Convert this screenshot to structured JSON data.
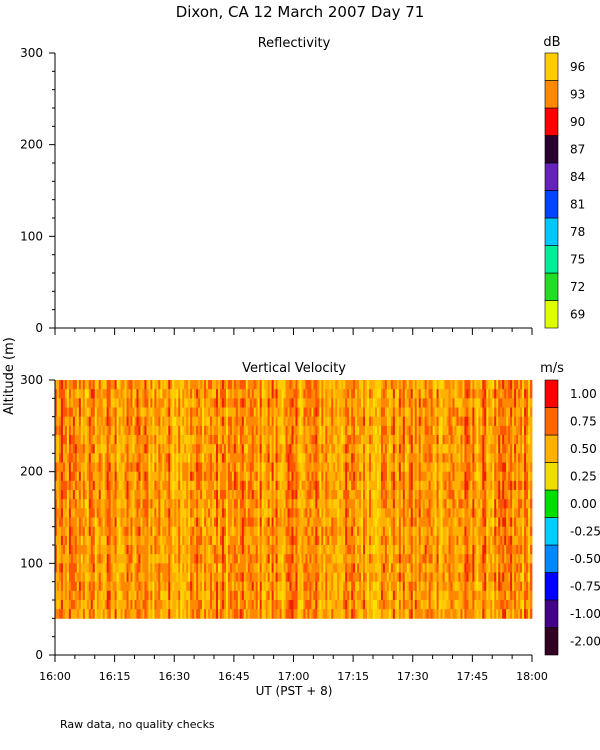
{
  "figure": {
    "title": "Dixon, CA 12 March 2007  Day  71",
    "shared_ylabel": "Altitude (m)",
    "xlabel": "UT  (PST + 8)",
    "footnote": "Raw data, no quality checks"
  },
  "colors": {
    "reflectivity_scale": [
      "#dfff00",
      "#22dd22",
      "#00ee99",
      "#00c8ff",
      "#0044ff",
      "#6622bb",
      "#2a0033",
      "#ff0000",
      "#ff8800",
      "#ffcc00"
    ],
    "velocity_scale": [
      "#330022",
      "#440088",
      "#0000ff",
      "#0088ff",
      "#00ccff",
      "#00dd00",
      "#eedd00",
      "#ffb000",
      "#ff6600",
      "#ff0000"
    ]
  },
  "chart_data": [
    {
      "type": "heatmap",
      "title": "Reflectivity",
      "ylabel": "Altitude (m)",
      "xlabel": "",
      "x_tick_labels": [
        "16:00",
        "16:15",
        "16:30",
        "16:45",
        "17:00",
        "17:15",
        "17:30",
        "17:45",
        "18:00"
      ],
      "xlim": [
        "16:00",
        "18:00"
      ],
      "ylim": [
        0,
        300
      ],
      "y_ticks": [
        0,
        100,
        200,
        300
      ],
      "colorbar": {
        "unit": "dB",
        "ticks": [
          "69",
          "72",
          "75",
          "78",
          "81",
          "84",
          "87",
          "90",
          "93",
          "96"
        ]
      },
      "data": "no returns plotted (empty panel)"
    },
    {
      "type": "heatmap",
      "title": "Vertical Velocity",
      "ylabel": "Altitude (m)",
      "xlabel": "UT  (PST + 8)",
      "x_tick_labels": [
        "16:00",
        "16:15",
        "16:30",
        "16:45",
        "17:00",
        "17:15",
        "17:30",
        "17:45",
        "18:00"
      ],
      "xlim": [
        "16:00",
        "18:00"
      ],
      "ylim": [
        0,
        300
      ],
      "y_ticks": [
        0,
        100,
        200,
        300
      ],
      "data_altitude_range_m": [
        40,
        300
      ],
      "dominant_values_m_s": [
        0.5,
        1.0
      ],
      "colorbar": {
        "unit": "m/s",
        "ticks": [
          "-2.00",
          "-1.00",
          "-0.75",
          "-0.50",
          "-0.25",
          "0.00",
          "0.25",
          "0.50",
          "0.75",
          "1.00"
        ]
      }
    }
  ]
}
